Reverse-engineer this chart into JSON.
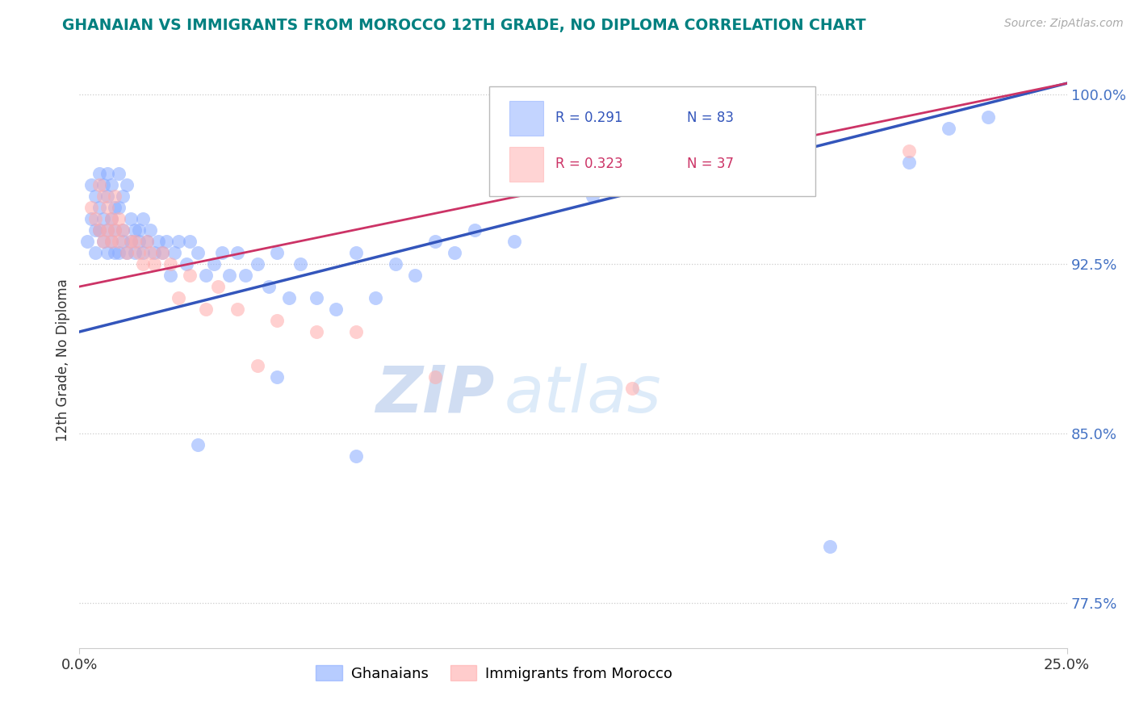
{
  "title": "GHANAIAN VS IMMIGRANTS FROM MOROCCO 12TH GRADE, NO DIPLOMA CORRELATION CHART",
  "title_color": "#008080",
  "source_text": "Source: ZipAtlas.com",
  "ylabel": "12th Grade, No Diploma",
  "xlim": [
    0.0,
    0.25
  ],
  "ylim": [
    0.755,
    1.01
  ],
  "xtick_labels": [
    "0.0%",
    "25.0%"
  ],
  "xtick_positions": [
    0.0,
    0.25
  ],
  "ytick_labels": [
    "77.5%",
    "85.0%",
    "92.5%",
    "100.0%"
  ],
  "ytick_positions": [
    0.775,
    0.85,
    0.925,
    1.0
  ],
  "ytick_color": "#4472c4",
  "ghanaian_color": "#88aaff",
  "morocco_color": "#ffaaaa",
  "trend_color_blue": "#3355bb",
  "trend_color_pink": "#cc3366",
  "watermark_zip": "ZIP",
  "watermark_atlas": "atlas",
  "background_color": "#ffffff",
  "ghanaians_x": [
    0.002,
    0.003,
    0.003,
    0.004,
    0.004,
    0.004,
    0.005,
    0.005,
    0.005,
    0.006,
    0.006,
    0.006,
    0.007,
    0.007,
    0.007,
    0.007,
    0.008,
    0.008,
    0.008,
    0.009,
    0.009,
    0.009,
    0.01,
    0.01,
    0.01,
    0.011,
    0.011,
    0.011,
    0.012,
    0.012,
    0.013,
    0.013,
    0.014,
    0.014,
    0.015,
    0.015,
    0.016,
    0.016,
    0.017,
    0.018,
    0.019,
    0.02,
    0.021,
    0.022,
    0.023,
    0.024,
    0.025,
    0.027,
    0.028,
    0.03,
    0.032,
    0.034,
    0.036,
    0.038,
    0.04,
    0.042,
    0.045,
    0.048,
    0.05,
    0.053,
    0.056,
    0.06,
    0.065,
    0.07,
    0.075,
    0.08,
    0.085,
    0.09,
    0.095,
    0.1,
    0.11,
    0.12,
    0.13,
    0.14,
    0.15,
    0.17,
    0.19,
    0.21,
    0.22,
    0.23,
    0.03,
    0.05,
    0.07
  ],
  "ghanaians_y": [
    0.935,
    0.945,
    0.96,
    0.94,
    0.955,
    0.93,
    0.965,
    0.95,
    0.94,
    0.96,
    0.945,
    0.935,
    0.955,
    0.965,
    0.94,
    0.93,
    0.96,
    0.945,
    0.935,
    0.95,
    0.94,
    0.93,
    0.965,
    0.95,
    0.93,
    0.955,
    0.94,
    0.935,
    0.96,
    0.93,
    0.945,
    0.935,
    0.94,
    0.93,
    0.935,
    0.94,
    0.945,
    0.93,
    0.935,
    0.94,
    0.93,
    0.935,
    0.93,
    0.935,
    0.92,
    0.93,
    0.935,
    0.925,
    0.935,
    0.93,
    0.92,
    0.925,
    0.93,
    0.92,
    0.93,
    0.92,
    0.925,
    0.915,
    0.93,
    0.91,
    0.925,
    0.91,
    0.905,
    0.93,
    0.91,
    0.925,
    0.92,
    0.935,
    0.93,
    0.94,
    0.935,
    0.96,
    0.955,
    0.965,
    0.97,
    0.975,
    0.8,
    0.97,
    0.985,
    0.99,
    0.845,
    0.875,
    0.84
  ],
  "morocco_x": [
    0.003,
    0.004,
    0.005,
    0.005,
    0.006,
    0.006,
    0.007,
    0.007,
    0.008,
    0.008,
    0.009,
    0.009,
    0.01,
    0.01,
    0.011,
    0.012,
    0.013,
    0.014,
    0.015,
    0.016,
    0.017,
    0.018,
    0.019,
    0.021,
    0.023,
    0.025,
    0.028,
    0.032,
    0.035,
    0.04,
    0.045,
    0.05,
    0.06,
    0.07,
    0.09,
    0.14,
    0.21
  ],
  "morocco_y": [
    0.95,
    0.945,
    0.96,
    0.94,
    0.955,
    0.935,
    0.95,
    0.94,
    0.945,
    0.935,
    0.955,
    0.94,
    0.945,
    0.935,
    0.94,
    0.93,
    0.935,
    0.935,
    0.93,
    0.925,
    0.935,
    0.93,
    0.925,
    0.93,
    0.925,
    0.91,
    0.92,
    0.905,
    0.915,
    0.905,
    0.88,
    0.9,
    0.895,
    0.895,
    0.875,
    0.87,
    0.975
  ],
  "trend_blue_x0": 0.0,
  "trend_blue_x1": 0.25,
  "trend_blue_y0": 0.895,
  "trend_blue_y1": 1.005,
  "trend_pink_x0": 0.0,
  "trend_pink_x1": 0.25,
  "trend_pink_y0": 0.915,
  "trend_pink_y1": 1.005
}
